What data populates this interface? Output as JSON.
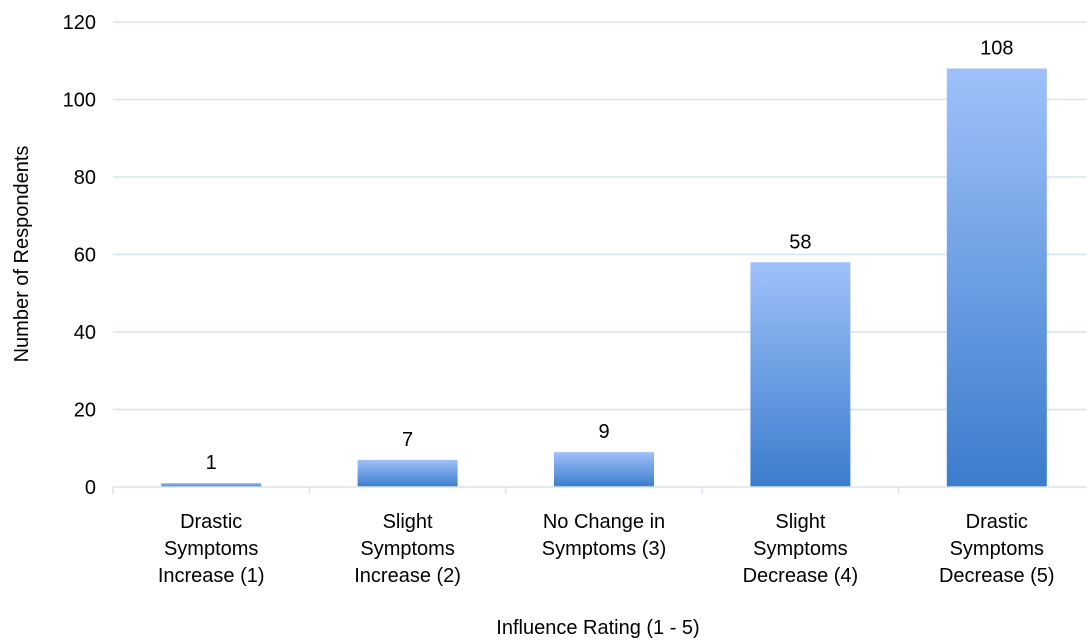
{
  "chart_data": {
    "type": "bar",
    "categories": [
      "Drastic Symptoms Increase (1)",
      "Slight Symptoms Increase (2)",
      "No Change in Symptoms (3)",
      "Slight Symptoms Decrease (4)",
      "Drastic Symptoms Decrease (5)"
    ],
    "category_lines": [
      [
        "Drastic",
        "Symptoms",
        "Increase (1)"
      ],
      [
        "Slight",
        "Symptoms",
        "Increase (2)"
      ],
      [
        "No Change in",
        "Symptoms (3)"
      ],
      [
        "Slight",
        "Symptoms",
        "Decrease (4)"
      ],
      [
        "Drastic",
        "Symptoms",
        "Decrease (5)"
      ]
    ],
    "values": [
      1,
      7,
      9,
      58,
      108
    ],
    "data_labels": [
      "1",
      "7",
      "9",
      "58",
      "108"
    ],
    "xlabel": "Influence Rating (1 - 5)",
    "ylabel": "Number of Respondents",
    "ylim": [
      0,
      120
    ],
    "yticks": [
      0,
      20,
      40,
      60,
      80,
      100,
      120
    ],
    "grid": true,
    "colors": {
      "bar_top": "#9fc1fa",
      "bar_bottom": "#3b7ccc",
      "gridline": "#d6e4f0",
      "axis": "#d6e4f0"
    }
  }
}
